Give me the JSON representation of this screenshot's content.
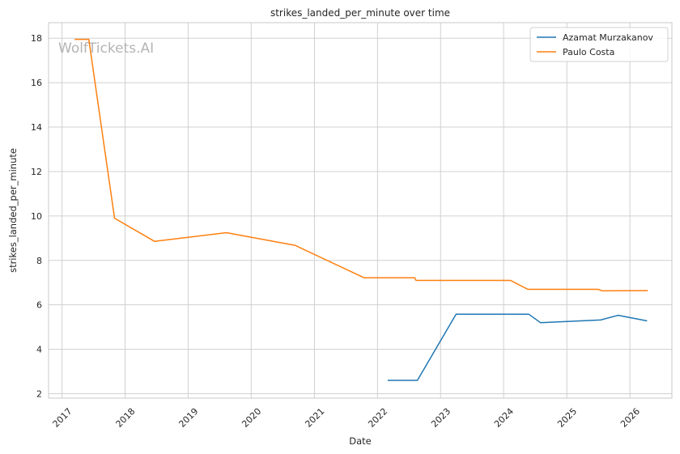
{
  "watermark": "WolfTickets.AI",
  "chart_data": {
    "type": "line",
    "title": "strikes_landed_per_minute over time",
    "xlabel": "Date",
    "ylabel": "strikes_landed_per_minute",
    "xlim": [
      "2016-10-15",
      "2026-09-01"
    ],
    "ylim": [
      1.8,
      18.7
    ],
    "x_ticks": [
      "2017",
      "2018",
      "2019",
      "2020",
      "2021",
      "2022",
      "2023",
      "2024",
      "2025",
      "2026"
    ],
    "y_ticks": [
      2,
      4,
      6,
      8,
      10,
      12,
      14,
      16,
      18
    ],
    "grid": true,
    "legend_position": "top-right",
    "series": [
      {
        "name": "Azamat Murzakanov",
        "color": "#1f77b4",
        "points": [
          [
            "2022-03-01",
            2.6
          ],
          [
            "2022-08-20",
            2.6
          ],
          [
            "2023-04-01",
            5.58
          ],
          [
            "2024-05-25",
            5.58
          ],
          [
            "2024-08-01",
            5.2
          ],
          [
            "2025-07-15",
            5.32
          ],
          [
            "2025-10-25",
            5.53
          ],
          [
            "2026-04-10",
            5.28
          ]
        ]
      },
      {
        "name": "Paulo Costa",
        "color": "#ff7f0e",
        "points": [
          [
            "2017-03-15",
            17.95
          ],
          [
            "2017-06-05",
            17.95
          ],
          [
            "2017-11-01",
            9.9
          ],
          [
            "2018-06-20",
            8.86
          ],
          [
            "2019-08-10",
            9.25
          ],
          [
            "2020-09-10",
            8.68
          ],
          [
            "2021-10-15",
            7.22
          ],
          [
            "2022-08-05",
            7.22
          ],
          [
            "2022-08-12",
            7.1
          ],
          [
            "2024-02-10",
            7.1
          ],
          [
            "2024-05-20",
            6.7
          ],
          [
            "2025-07-01",
            6.7
          ],
          [
            "2025-07-25",
            6.63
          ],
          [
            "2026-04-15",
            6.64
          ]
        ]
      }
    ]
  }
}
